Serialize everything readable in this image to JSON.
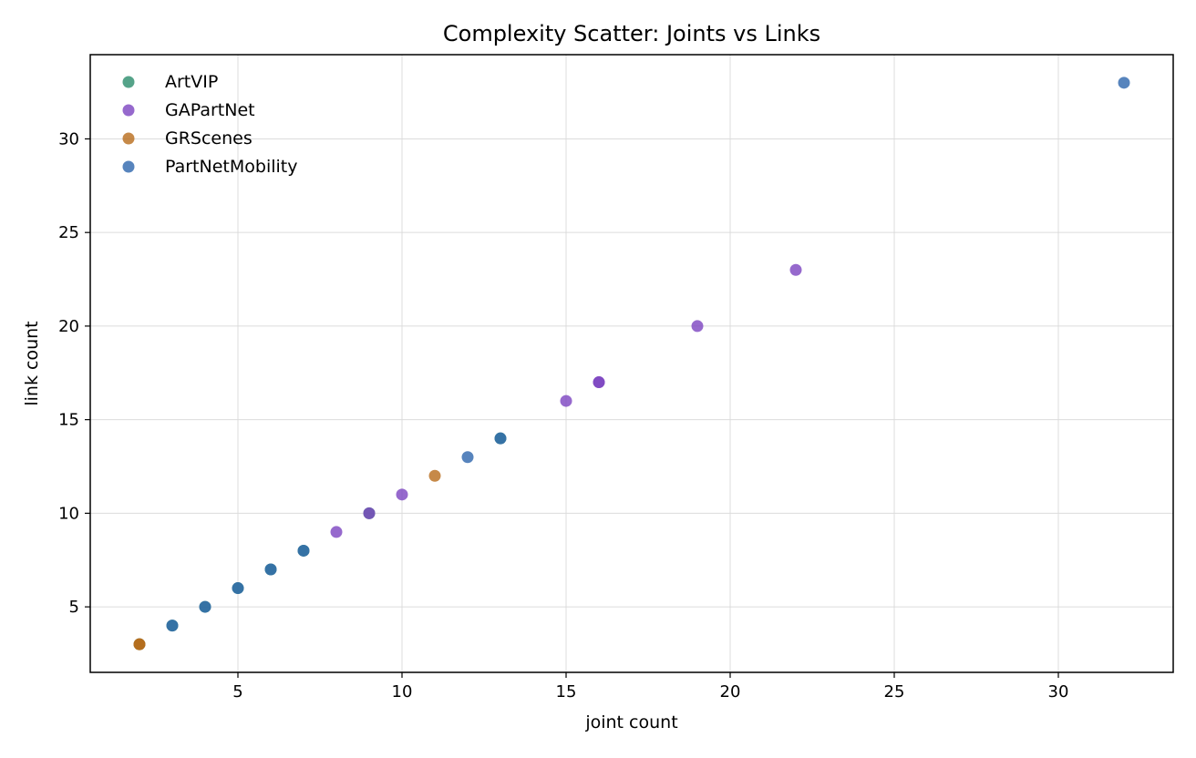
{
  "chart_data": {
    "type": "scatter",
    "title": "Complexity Scatter: Joints vs Links",
    "xlabel": "joint count",
    "ylabel": "link count",
    "xlim": [
      0.5,
      33.5
    ],
    "ylim": [
      1.5,
      34.5
    ],
    "xticks": [
      5,
      10,
      15,
      20,
      25,
      30
    ],
    "yticks": [
      5,
      10,
      15,
      20,
      25,
      30
    ],
    "grid": true,
    "legend_position": "top-left",
    "series": [
      {
        "name": "ArtVIP",
        "color": "#2b8c6b",
        "points": [
          [
            2,
            3
          ],
          [
            3,
            4
          ],
          [
            4,
            5
          ],
          [
            5,
            6
          ],
          [
            6,
            7
          ],
          [
            7,
            8
          ],
          [
            9,
            10
          ],
          [
            13,
            14
          ]
        ]
      },
      {
        "name": "GAPartNet",
        "color": "#7c44c0",
        "points": [
          [
            8,
            9
          ],
          [
            9,
            10
          ],
          [
            10,
            11
          ],
          [
            15,
            16
          ],
          [
            16,
            17
          ],
          [
            16,
            17
          ],
          [
            19,
            20
          ],
          [
            22,
            23
          ]
        ]
      },
      {
        "name": "GRScenes",
        "color": "#b86b1a",
        "points": [
          [
            2,
            3
          ],
          [
            2,
            3
          ],
          [
            11,
            12
          ]
        ]
      },
      {
        "name": "PartNetMobility",
        "color": "#2d65ad",
        "points": [
          [
            3,
            4
          ],
          [
            4,
            5
          ],
          [
            5,
            6
          ],
          [
            6,
            7
          ],
          [
            7,
            8
          ],
          [
            12,
            13
          ],
          [
            13,
            14
          ],
          [
            32,
            33
          ]
        ]
      }
    ]
  }
}
